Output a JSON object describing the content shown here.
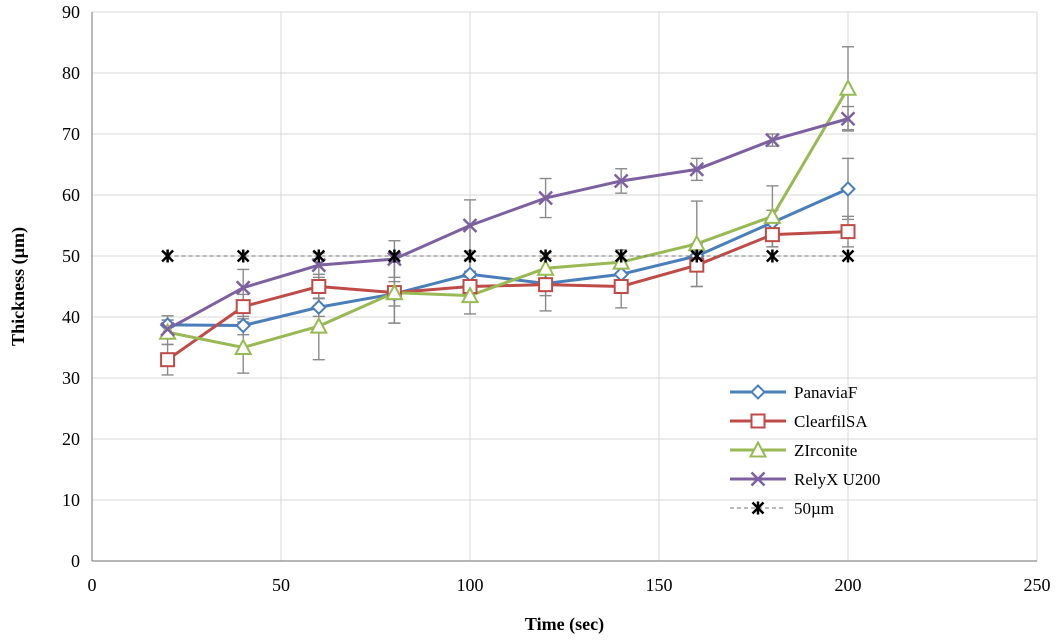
{
  "chart_data": {
    "type": "line",
    "title": "",
    "xlabel": "Time (sec)",
    "ylabel": "Thickness (µm)",
    "xlim": [
      0,
      250
    ],
    "ylim": [
      0,
      90
    ],
    "xticks": [
      0,
      50,
      100,
      150,
      200,
      250
    ],
    "yticks": [
      0,
      10,
      20,
      30,
      40,
      50,
      60,
      70,
      80,
      90
    ],
    "grid": true,
    "legend_position": "bottom-right",
    "series": [
      {
        "name": "PanaviaF",
        "color": "#4a7ebb",
        "marker": "diamond",
        "x": [
          20,
          40,
          60,
          80,
          100,
          120,
          140,
          160,
          180,
          200
        ],
        "y": [
          38.7,
          38.6,
          41.6,
          43.8,
          47,
          45.5,
          47,
          50,
          55.5,
          61
        ],
        "err": [
          1.5,
          1.5,
          1.5,
          2,
          2.5,
          2,
          2,
          2,
          2,
          5
        ]
      },
      {
        "name": "ClearfilSA",
        "color": "#be4b48",
        "marker": "square",
        "x": [
          20,
          40,
          60,
          80,
          100,
          120,
          140,
          160,
          180,
          200
        ],
        "y": [
          33,
          41.7,
          45,
          44,
          45,
          45.3,
          45,
          48.5,
          53.5,
          54
        ],
        "err": [
          2.5,
          2,
          2,
          5,
          2.5,
          4.3,
          3.5,
          3.5,
          2,
          2.5
        ]
      },
      {
        "name": "ZIrconite",
        "color": "#98b954",
        "marker": "triangle",
        "x": [
          20,
          40,
          60,
          80,
          100,
          120,
          140,
          160,
          180,
          200
        ],
        "y": [
          37.5,
          35,
          38.5,
          44,
          43.5,
          48,
          49,
          52,
          56.5,
          77.5
        ],
        "err": [
          2,
          4.2,
          5.5,
          5,
          3,
          2.5,
          2,
          7,
          5,
          6.8
        ]
      },
      {
        "name": "RelyX U200",
        "color": "#7d60a0",
        "marker": "x",
        "x": [
          20,
          40,
          60,
          80,
          100,
          120,
          140,
          160,
          180,
          200
        ],
        "y": [
          38,
          44.8,
          48.5,
          49.5,
          55,
          59.5,
          62.3,
          64.2,
          69,
          72.5
        ],
        "err": [
          1.5,
          3,
          2,
          3,
          4.2,
          3.2,
          2,
          1.8,
          1,
          2
        ]
      },
      {
        "name": "50µm",
        "color": "#000000",
        "marker": "asterisk",
        "dashed": true,
        "x": [
          20,
          40,
          60,
          80,
          100,
          120,
          140,
          160,
          180,
          200
        ],
        "y": [
          50,
          50,
          50,
          50,
          50,
          50,
          50,
          50,
          50,
          50
        ],
        "err": []
      }
    ]
  }
}
